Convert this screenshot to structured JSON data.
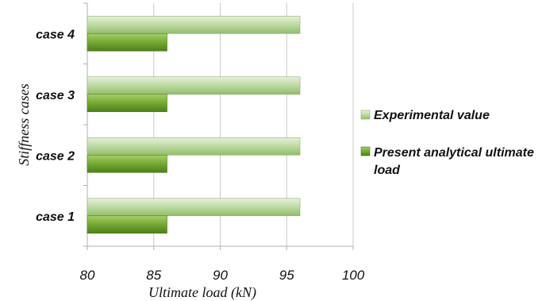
{
  "chart_data": {
    "type": "bar",
    "orientation": "horizontal",
    "categories": [
      "case 1",
      "case 2",
      "case 3",
      "case 4"
    ],
    "series": [
      {
        "name": "Experimental value",
        "values": [
          96,
          96,
          96,
          96
        ],
        "color": "#b5d59a"
      },
      {
        "name": "Present analytical ultimate load",
        "values": [
          86,
          86,
          86,
          86
        ],
        "color": "#73a531"
      }
    ],
    "xlabel": "Ultimate load (kN)",
    "ylabel": "Stiffness cases",
    "xlim": [
      80,
      100
    ],
    "xticks": [
      80,
      85,
      90,
      95,
      100
    ],
    "grid": "vertical",
    "legend_position": "right"
  }
}
